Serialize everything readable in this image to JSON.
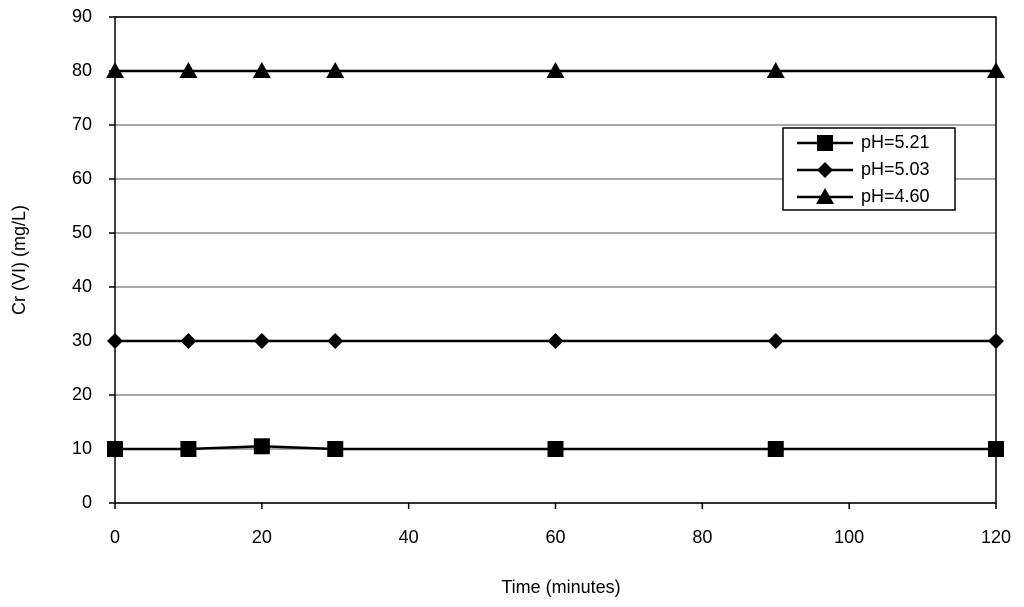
{
  "chart_data": {
    "type": "line",
    "x_label": "Time (minutes)",
    "y_label": "Cr (VI) (mg/L)",
    "x": [
      0,
      10,
      20,
      30,
      60,
      90,
      120
    ],
    "series": [
      {
        "name": "pH=5.21",
        "color": "#000000",
        "marker": "square",
        "values": [
          10,
          10,
          10.5,
          10,
          10,
          10,
          10
        ]
      },
      {
        "name": "pH=5.03",
        "color": "#000000",
        "marker": "diamond",
        "values": [
          30,
          30,
          30,
          30,
          30,
          30,
          30
        ]
      },
      {
        "name": "pH=4.60",
        "color": "#000000",
        "marker": "triangle",
        "values": [
          80,
          80,
          80,
          80,
          80,
          80,
          80
        ]
      }
    ],
    "xlim": [
      0,
      120
    ],
    "xticks": [
      0,
      20,
      40,
      60,
      80,
      100,
      120
    ],
    "ylim": [
      0,
      90
    ],
    "yticks": [
      0,
      10,
      20,
      30,
      40,
      50,
      60,
      70,
      80,
      90
    ],
    "grid": true,
    "legend": "right"
  }
}
